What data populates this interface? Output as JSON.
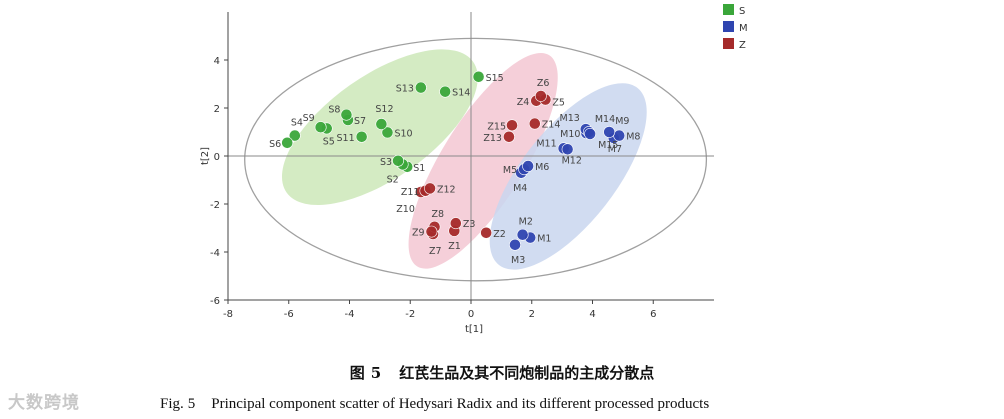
{
  "chart_data": {
    "type": "scatter",
    "xlabel": "t[1]",
    "ylabel": "t[2]",
    "xlim": [
      -8,
      8
    ],
    "ylim": [
      -6,
      6
    ],
    "xticks": [
      -8,
      -6,
      -4,
      -2,
      0,
      2,
      4,
      6
    ],
    "yticks": [
      -6,
      -4,
      -2,
      0,
      2,
      4
    ],
    "grid": false,
    "legend_position": "top-right",
    "series": [
      {
        "name": "S",
        "color": "#3aa63a",
        "ellipse_color": "#cde8b8",
        "points": [
          {
            "label": "S1",
            "x": -2.1,
            "y": -0.45
          },
          {
            "label": "S2",
            "x": -2.25,
            "y": -0.35
          },
          {
            "label": "S3",
            "x": -2.4,
            "y": -0.2
          },
          {
            "label": "S4",
            "x": -5.8,
            "y": 0.85
          },
          {
            "label": "S5",
            "x": -4.75,
            "y": 1.15
          },
          {
            "label": "S6",
            "x": -6.05,
            "y": 0.55
          },
          {
            "label": "S7",
            "x": -4.05,
            "y": 1.5
          },
          {
            "label": "S8",
            "x": -4.1,
            "y": 1.72
          },
          {
            "label": "S9",
            "x": -4.95,
            "y": 1.2
          },
          {
            "label": "S10",
            "x": -2.75,
            "y": 0.98
          },
          {
            "label": "S11",
            "x": -3.6,
            "y": 0.8
          },
          {
            "label": "S12",
            "x": -2.95,
            "y": 1.33
          },
          {
            "label": "S13",
            "x": -1.65,
            "y": 2.85
          },
          {
            "label": "S14",
            "x": -0.85,
            "y": 2.68
          },
          {
            "label": "S15",
            "x": 0.25,
            "y": 3.3
          }
        ]
      },
      {
        "name": "M",
        "color": "#2f45b0",
        "ellipse_color": "#c9d6ee",
        "points": [
          {
            "label": "M1",
            "x": 1.95,
            "y": -3.4
          },
          {
            "label": "M2",
            "x": 1.7,
            "y": -3.28
          },
          {
            "label": "M3",
            "x": 1.45,
            "y": -3.7
          },
          {
            "label": "M4",
            "x": 1.65,
            "y": -0.7
          },
          {
            "label": "M5",
            "x": 1.75,
            "y": -0.55
          },
          {
            "label": "M6",
            "x": 1.88,
            "y": -0.42
          },
          {
            "label": "M7",
            "x": 4.7,
            "y": 0.75
          },
          {
            "label": "M8",
            "x": 4.88,
            "y": 0.85
          },
          {
            "label": "M9",
            "x": 4.55,
            "y": 1.0
          },
          {
            "label": "M10",
            "x": 3.8,
            "y": 0.95
          },
          {
            "label": "M11",
            "x": 3.05,
            "y": 0.32
          },
          {
            "label": "M12",
            "x": 3.18,
            "y": 0.28
          },
          {
            "label": "M13",
            "x": 3.78,
            "y": 1.12
          },
          {
            "label": "M14",
            "x": 3.88,
            "y": 1.0
          },
          {
            "label": "M15",
            "x": 3.92,
            "y": 0.92
          }
        ]
      },
      {
        "name": "Z",
        "color": "#a52a2a",
        "ellipse_color": "#f3c7d2",
        "points": [
          {
            "label": "Z1",
            "x": -0.55,
            "y": -3.12
          },
          {
            "label": "Z2",
            "x": 0.5,
            "y": -3.2
          },
          {
            "label": "Z3",
            "x": -0.5,
            "y": -2.8
          },
          {
            "label": "Z4",
            "x": 2.15,
            "y": 2.3
          },
          {
            "label": "Z5",
            "x": 2.45,
            "y": 2.35
          },
          {
            "label": "Z6",
            "x": 2.3,
            "y": 2.5
          },
          {
            "label": "Z7",
            "x": -1.25,
            "y": -3.25
          },
          {
            "label": "Z8",
            "x": -1.2,
            "y": -2.95
          },
          {
            "label": "Z9",
            "x": -1.3,
            "y": -3.15
          },
          {
            "label": "Z10",
            "x": -1.65,
            "y": -1.5
          },
          {
            "label": "Z11",
            "x": -1.5,
            "y": -1.45
          },
          {
            "label": "Z12",
            "x": -1.35,
            "y": -1.35
          },
          {
            "label": "Z13",
            "x": 1.25,
            "y": 0.8
          },
          {
            "label": "Z14",
            "x": 2.1,
            "y": 1.35
          },
          {
            "label": "Z15",
            "x": 1.35,
            "y": 1.28
          }
        ]
      }
    ]
  },
  "caption": {
    "cn_fig": "图",
    "cn_num": "5",
    "cn_title": "红芪生品及其不同炮制品的主成分散点",
    "en_fig": "Fig.",
    "en_num": "5",
    "en_title": "Principal component scatter of Hedysari Radix and its different processed products"
  },
  "watermark": "大数跨境"
}
